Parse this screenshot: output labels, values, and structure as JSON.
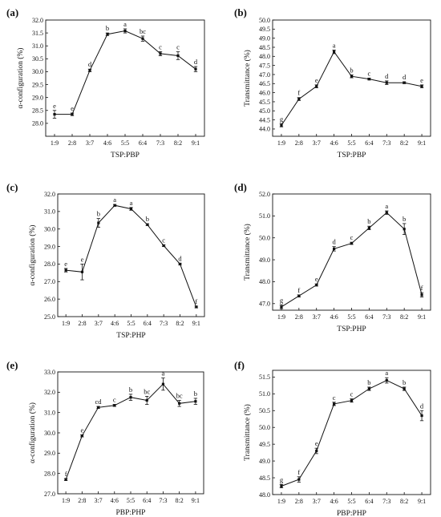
{
  "figure": {
    "chart_data": [
      {
        "panel_label": "(a)",
        "type": "line",
        "categories": [
          "1:9",
          "2:8",
          "3:7",
          "4:6",
          "5:5",
          "6:4",
          "7:3",
          "8:2",
          "9:1"
        ],
        "values": [
          28.35,
          28.35,
          30.05,
          31.45,
          31.58,
          31.28,
          30.7,
          30.62,
          30.1
        ],
        "errors": [
          0.15,
          0.05,
          0.05,
          0.05,
          0.08,
          0.1,
          0.08,
          0.15,
          0.1
        ],
        "labels": [
          "e",
          "e",
          "d",
          "b",
          "a",
          "bc",
          "c",
          "c",
          "d"
        ],
        "xlabel": "TSP:PBP",
        "ylabel": "α-configuration (%)",
        "ylim": [
          27.5,
          32.0
        ],
        "yticks": [
          "28.0",
          "28.5",
          "29.0",
          "29.5",
          "30.0",
          "30.5",
          "31.0",
          "31.5",
          "32.0"
        ]
      },
      {
        "panel_label": "(b)",
        "type": "line",
        "categories": [
          "1:9",
          "2:8",
          "3:7",
          "4:6",
          "5:5",
          "6:4",
          "7:3",
          "8:2",
          "9:1"
        ],
        "values": [
          44.2,
          45.65,
          46.35,
          48.25,
          46.9,
          46.75,
          46.55,
          46.55,
          46.35
        ],
        "errors": [
          0.08,
          0.08,
          0.08,
          0.1,
          0.08,
          0.05,
          0.1,
          0.05,
          0.08
        ],
        "labels": [
          "g",
          "f",
          "e",
          "a",
          "b",
          "c",
          "d",
          "d",
          "e"
        ],
        "xlabel": "TSP:PBP",
        "ylabel": "Transmittance (%)",
        "ylim": [
          43.6,
          50.0
        ],
        "yticks": [
          "44.0",
          "44.5",
          "45.0",
          "45.5",
          "46.0",
          "46.5",
          "47.0",
          "47.5",
          "48.0",
          "48.5",
          "49.0",
          "49.5",
          "50.0"
        ]
      },
      {
        "panel_label": "(c)",
        "type": "line",
        "categories": [
          "1:9",
          "2:8",
          "3:7",
          "4:6",
          "5:5",
          "6:4",
          "7:3",
          "8:2",
          "9:1"
        ],
        "values": [
          27.65,
          27.55,
          30.35,
          31.35,
          31.15,
          30.25,
          29.05,
          28.0,
          25.55
        ],
        "errors": [
          0.1,
          0.45,
          0.25,
          0.05,
          0.08,
          0.05,
          0.05,
          0.05,
          0.05
        ],
        "labels": [
          "e",
          "e",
          "b",
          "a",
          "a",
          "b",
          "c",
          "d",
          "f"
        ],
        "xlabel": "TSP:PHP",
        "ylabel": "α-configuration (%)",
        "ylim": [
          25.0,
          32.0
        ],
        "yticks": [
          "25.0",
          "26.0",
          "27.0",
          "28.0",
          "29.0",
          "30.0",
          "31.0",
          "32.0"
        ]
      },
      {
        "panel_label": "(d)",
        "type": "line",
        "categories": [
          "1:9",
          "2:8",
          "3:7",
          "4:6",
          "5:5",
          "6:4",
          "7:3",
          "8:2",
          "9:1"
        ],
        "values": [
          46.85,
          47.35,
          47.85,
          49.5,
          49.75,
          50.45,
          51.15,
          50.4,
          47.4
        ],
        "errors": [
          0.08,
          0.05,
          0.05,
          0.1,
          0.05,
          0.08,
          0.08,
          0.25,
          0.1
        ],
        "labels": [
          "g",
          "f",
          "e",
          "d",
          "c",
          "b",
          "a",
          "b",
          "f"
        ],
        "xlabel": "TSP:PHP",
        "ylabel": "Transmittance (%)",
        "ylim": [
          46.7,
          52.0
        ],
        "yticks": [
          "47.0",
          "48.0",
          "49.0",
          "50.0",
          "51.0",
          "52.0"
        ]
      },
      {
        "panel_label": "(e)",
        "type": "line",
        "categories": [
          "1:9",
          "2:8",
          "3:7",
          "4:6",
          "5:5",
          "6:4",
          "7:3",
          "8:2",
          "9:1"
        ],
        "values": [
          27.7,
          29.85,
          31.25,
          31.35,
          31.75,
          31.6,
          32.4,
          31.45,
          31.55
        ],
        "errors": [
          0.05,
          0.05,
          0.05,
          0.05,
          0.15,
          0.2,
          0.3,
          0.15,
          0.15
        ],
        "labels": [
          "f",
          "e",
          "cd",
          "c",
          "b",
          "bc",
          "a",
          "bc",
          "b"
        ],
        "xlabel": "PBP:PHP",
        "ylabel": "α-configuration (%)",
        "ylim": [
          27.0,
          33.0
        ],
        "yticks": [
          "27.0",
          "28.0",
          "29.0",
          "30.0",
          "31.0",
          "32.0",
          "33.0"
        ]
      },
      {
        "panel_label": "(f)",
        "type": "line",
        "categories": [
          "1:9",
          "2:8",
          "3:7",
          "4:6",
          "5:5",
          "6:4",
          "7:3",
          "8:2",
          "9:1"
        ],
        "values": [
          48.25,
          48.45,
          49.3,
          50.7,
          50.8,
          51.15,
          51.4,
          51.15,
          50.35
        ],
        "errors": [
          0.05,
          0.08,
          0.08,
          0.05,
          0.05,
          0.05,
          0.08,
          0.05,
          0.15
        ],
        "labels": [
          "g",
          "f",
          "e",
          "c",
          "c",
          "b",
          "a",
          "b",
          "d"
        ],
        "xlabel": "PBP:PHP",
        "ylabel": "Transmittance (%)",
        "ylim": [
          48.0,
          51.7
        ],
        "yticks": [
          "48.0",
          "48.5",
          "49.0",
          "49.5",
          "50.0",
          "50.5",
          "51.0",
          "51.5"
        ]
      }
    ]
  }
}
